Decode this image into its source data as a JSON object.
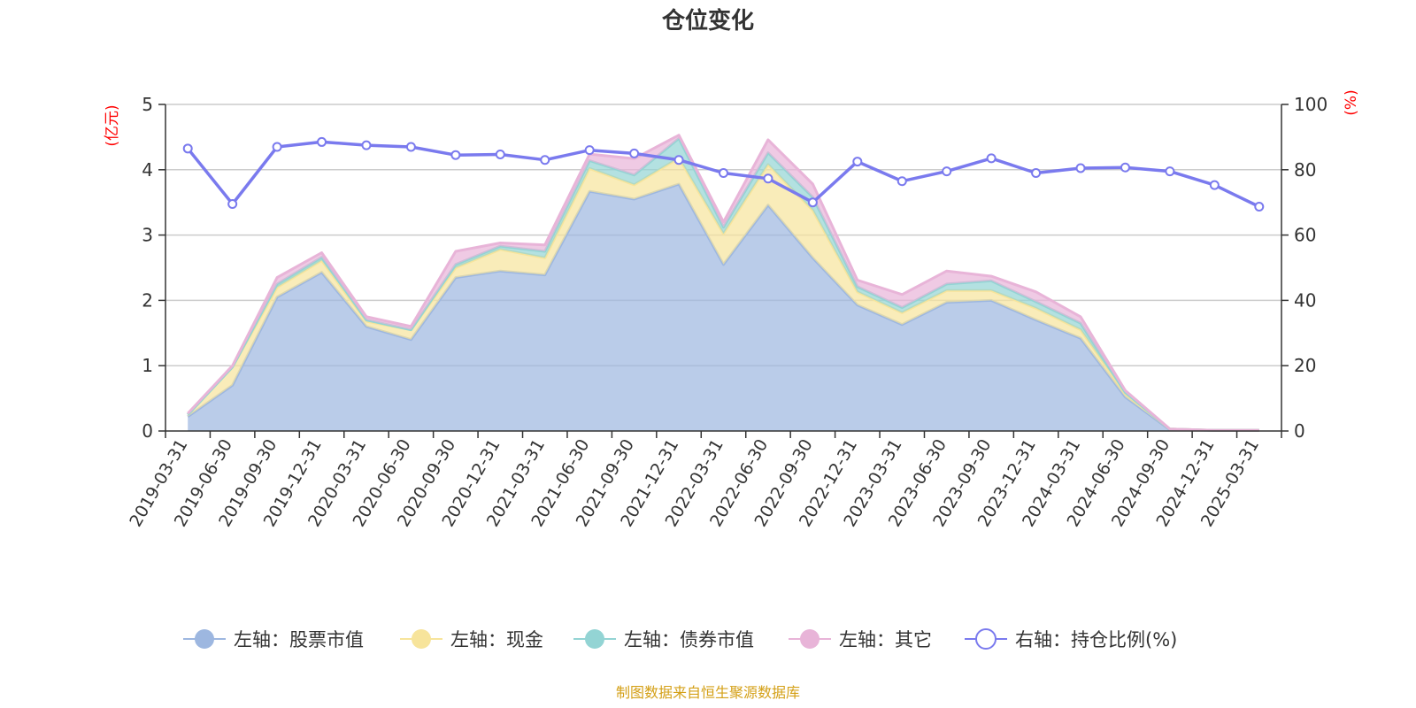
{
  "title": "仓位变化",
  "source": "制图数据来自恒生聚源数据库",
  "colors": {
    "stock": "#9db7e0",
    "cash": "#f7e49b",
    "bond": "#93d4d4",
    "other": "#e8b4d8",
    "ratio": "#7a7aee",
    "unit": "#ff0000",
    "source": "#d4a017",
    "grid": "#cccccc",
    "axis": "#333333"
  },
  "chart_data": {
    "type": "area",
    "title": "仓位变化",
    "categories": [
      "2019-03-31",
      "2019-06-30",
      "2019-09-30",
      "2019-12-31",
      "2020-03-31",
      "2020-06-30",
      "2020-09-30",
      "2020-12-31",
      "2021-03-31",
      "2021-06-30",
      "2021-09-30",
      "2021-12-31",
      "2022-03-31",
      "2022-06-30",
      "2022-09-30",
      "2022-12-31",
      "2023-03-31",
      "2023-06-30",
      "2023-09-30",
      "2023-12-31",
      "2024-03-31",
      "2024-06-30",
      "2024-09-30",
      "2024-12-31",
      "2025-03-31"
    ],
    "left_axis": {
      "unit": "(亿元)",
      "ylim": [
        0,
        5
      ],
      "ticks": [
        "0",
        "1",
        "2",
        "3",
        "4",
        "5"
      ]
    },
    "right_axis": {
      "unit": "(%)",
      "ylim": [
        0,
        100
      ],
      "ticks": [
        "0",
        "20",
        "40",
        "60",
        "80",
        "100"
      ]
    },
    "stacked_series": [
      {
        "key": "stock",
        "name": "左轴：股票市值",
        "values": [
          0.22,
          0.7,
          2.05,
          2.43,
          1.6,
          1.4,
          2.35,
          2.45,
          2.39,
          3.67,
          3.55,
          3.78,
          2.55,
          3.46,
          2.65,
          1.93,
          1.63,
          1.97,
          2.0,
          1.7,
          1.42,
          0.52,
          0.02,
          0.01,
          0.01
        ]
      },
      {
        "key": "cash",
        "name": "左轴：现金",
        "values": [
          0.03,
          0.28,
          0.15,
          0.18,
          0.08,
          0.15,
          0.15,
          0.33,
          0.26,
          0.35,
          0.22,
          0.4,
          0.47,
          0.62,
          0.73,
          0.2,
          0.18,
          0.18,
          0.15,
          0.18,
          0.13,
          0.05,
          0.01,
          0.0,
          0.0
        ]
      },
      {
        "key": "bond",
        "name": "左轴：债券市值",
        "values": [
          0.0,
          0.0,
          0.05,
          0.05,
          0.02,
          0.0,
          0.05,
          0.05,
          0.1,
          0.12,
          0.15,
          0.3,
          0.1,
          0.18,
          0.2,
          0.08,
          0.08,
          0.1,
          0.15,
          0.1,
          0.1,
          0.02,
          0.0,
          0.0,
          0.0
        ]
      },
      {
        "key": "other",
        "name": "左轴：其它",
        "values": [
          0.02,
          0.02,
          0.1,
          0.07,
          0.05,
          0.05,
          0.2,
          0.05,
          0.1,
          0.1,
          0.25,
          0.05,
          0.08,
          0.2,
          0.2,
          0.1,
          0.2,
          0.2,
          0.07,
          0.15,
          0.1,
          0.03,
          0.0,
          0.0,
          0.0
        ]
      }
    ],
    "line_series": {
      "key": "ratio",
      "name": "右轴：持仓比例(%)",
      "values": [
        86.5,
        69.5,
        87.0,
        88.5,
        87.5,
        87.0,
        84.5,
        84.7,
        83.0,
        86.0,
        85.0,
        83.0,
        79.0,
        77.3,
        70.0,
        82.5,
        76.5,
        79.5,
        83.5,
        79.0,
        80.5,
        80.7,
        79.5,
        75.3,
        68.7
      ]
    },
    "legend": [
      "左轴：股票市值",
      "左轴：现金",
      "左轴：债券市值",
      "左轴：其它",
      "右轴：持仓比例(%)"
    ]
  }
}
